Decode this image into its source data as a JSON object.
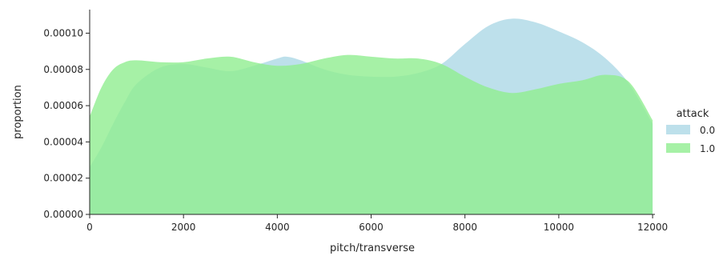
{
  "chart_data": {
    "type": "area",
    "xlabel": "pitch/transverse",
    "ylabel": "proportion",
    "xlim": [
      0,
      12050
    ],
    "ylim": [
      0,
      0.000113
    ],
    "xticks": [
      0,
      2000,
      4000,
      6000,
      8000,
      10000,
      12000
    ],
    "xtick_labels": [
      "0",
      "2000",
      "4000",
      "6000",
      "8000",
      "10000",
      "12000"
    ],
    "yticks": [
      0,
      2e-05,
      4e-05,
      6e-05,
      8e-05,
      0.0001
    ],
    "ytick_labels": [
      "0.00000",
      "0.00002",
      "0.00004",
      "0.00006",
      "0.00008",
      "0.00010"
    ],
    "grid": false,
    "legend": {
      "title": "attack",
      "placement": "right"
    },
    "series": [
      {
        "name": "0.0",
        "color": "#add8e6",
        "x": [
          0,
          250,
          500,
          750,
          1000,
          1500,
          2000,
          2500,
          3000,
          3500,
          4000,
          4200,
          4500,
          5000,
          5500,
          6000,
          6500,
          7000,
          7500,
          8000,
          8500,
          9000,
          9500,
          10000,
          10500,
          11000,
          11500,
          12000
        ],
        "y": [
          2.6e-05,
          3.7e-05,
          5e-05,
          6.2e-05,
          7.2e-05,
          8.1e-05,
          8.3e-05,
          8.1e-05,
          7.9e-05,
          8.2e-05,
          8.6e-05,
          8.7e-05,
          8.5e-05,
          8e-05,
          7.7e-05,
          7.6e-05,
          7.6e-05,
          7.8e-05,
          8.3e-05,
          9.4e-05,
          0.000104,
          0.000108,
          0.000106,
          0.000101,
          9.5e-05,
          8.6e-05,
          7.2e-05,
          5e-05
        ]
      },
      {
        "name": "1.0",
        "color": "#90ee90",
        "x": [
          0,
          250,
          500,
          750,
          1000,
          1500,
          2000,
          2500,
          3000,
          3500,
          4000,
          4500,
          5000,
          5500,
          6000,
          6500,
          7000,
          7500,
          8000,
          8500,
          9000,
          9500,
          10000,
          10500,
          11000,
          11500,
          12000
        ],
        "y": [
          5.4e-05,
          7e-05,
          8e-05,
          8.4e-05,
          8.5e-05,
          8.4e-05,
          8.4e-05,
          8.6e-05,
          8.7e-05,
          8.4e-05,
          8.2e-05,
          8.3e-05,
          8.6e-05,
          8.8e-05,
          8.7e-05,
          8.6e-05,
          8.6e-05,
          8.3e-05,
          7.6e-05,
          7e-05,
          6.7e-05,
          6.9e-05,
          7.2e-05,
          7.4e-05,
          7.7e-05,
          7.3e-05,
          5.2e-05
        ]
      }
    ]
  }
}
